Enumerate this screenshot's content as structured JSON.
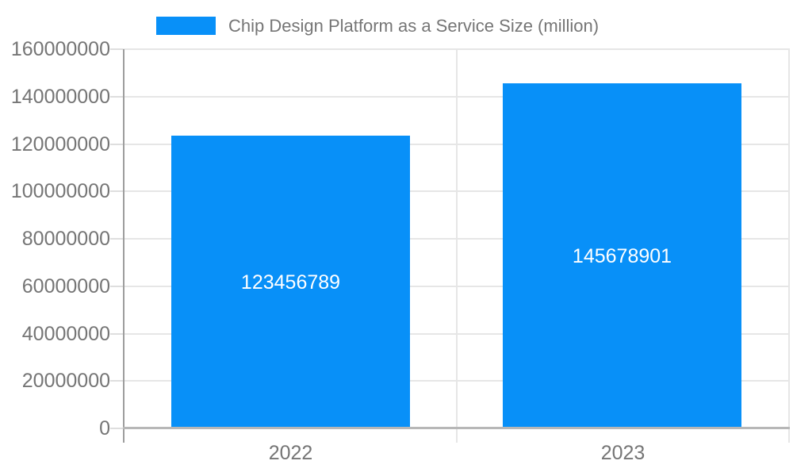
{
  "legend": {
    "label": "Chip Design Platform as a Service Size (million)",
    "swatch_color": "#0890f8",
    "position": "top"
  },
  "chart_data": {
    "type": "bar",
    "title": "Chip Design Platform as a Service Size (million)",
    "categories": [
      "2022",
      "2023"
    ],
    "series": [
      {
        "name": "Chip Design Platform as a Service Size (million)",
        "color": "#0890f8",
        "values": [
          123456789,
          145678901
        ]
      }
    ],
    "data_labels": [
      "123456789",
      "145678901"
    ],
    "xlabel": "",
    "ylabel": "",
    "ylim": [
      0,
      160000000
    ],
    "ytick_interval": 20000000,
    "yticks": [
      0,
      20000000,
      40000000,
      60000000,
      80000000,
      100000000,
      120000000,
      140000000,
      160000000
    ],
    "ytick_labels": [
      "0",
      "20000000",
      "40000000",
      "60000000",
      "80000000",
      "100000000",
      "120000000",
      "140000000",
      "160000000"
    ],
    "grid": true,
    "legend_position": "top"
  },
  "colors": {
    "bar": "#0890f8",
    "text": "#757575",
    "data_label_text": "#ffffff",
    "gridline": "#e6e6e6",
    "tick": "#dedede",
    "axis_line": "#9e9e9e",
    "baseline": "#b7b7b7",
    "background": "#ffffff"
  }
}
